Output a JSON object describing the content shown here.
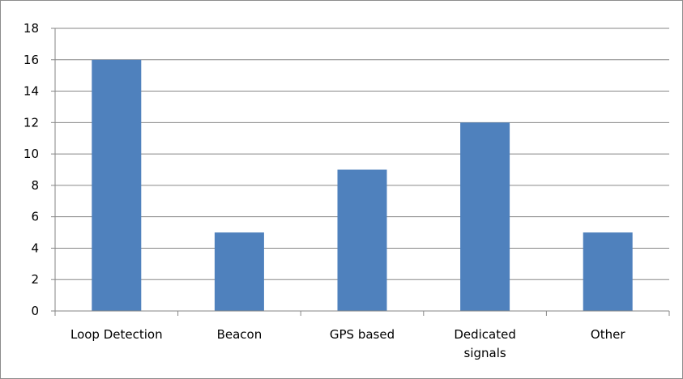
{
  "chart_data": {
    "type": "bar",
    "categories": [
      [
        "Loop Detection"
      ],
      [
        "Beacon"
      ],
      [
        "GPS based"
      ],
      [
        "Dedicated",
        "signals"
      ],
      [
        "Other"
      ]
    ],
    "values": [
      16,
      5,
      9,
      12,
      5
    ],
    "ylim": [
      0,
      18
    ],
    "yticks": [
      0,
      2,
      4,
      6,
      8,
      10,
      12,
      14,
      16,
      18
    ],
    "grid": true,
    "bar_color": "#4f81bd",
    "grid_color": "#868686",
    "axis_color": "#868686"
  }
}
